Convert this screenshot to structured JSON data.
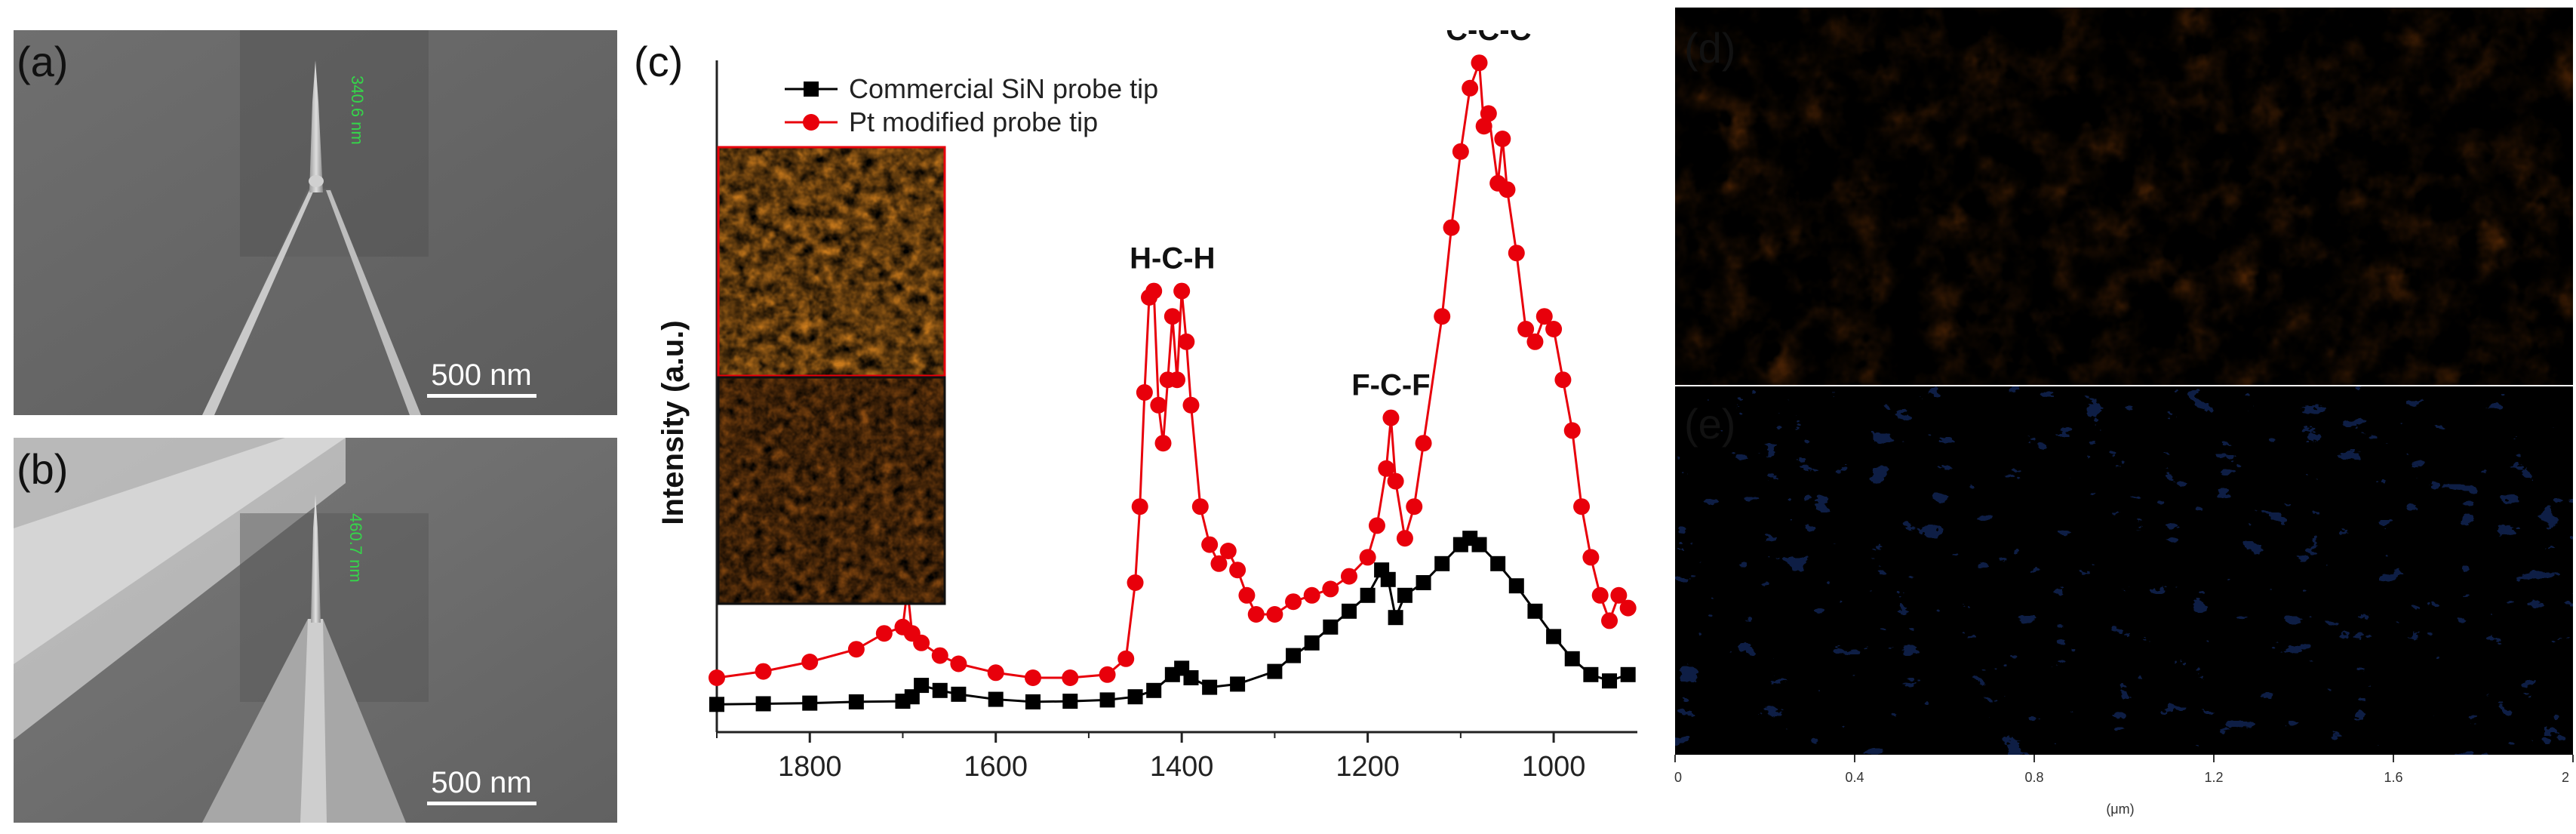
{
  "panels": {
    "a": {
      "label": "(a)",
      "scale_bar": "500 nm",
      "measurement": "340.6 nm"
    },
    "b": {
      "label": "(b)",
      "scale_bar": "500 nm",
      "measurement": "460.7 nm"
    },
    "c": {
      "label": "(c)"
    },
    "d": {
      "label": "(d)"
    },
    "e": {
      "label": "(e)",
      "ticks": [
        "0",
        "0.4",
        "0.8",
        "1.2",
        "1.6",
        "2"
      ],
      "unit": "(μm)"
    }
  },
  "chart_data": {
    "type": "line",
    "title": "",
    "xlabel": "",
    "ylabel": "Intensity (a.u.)",
    "xlim": [
      1900,
      910
    ],
    "ylim": [
      0,
      10
    ],
    "x_ticks": [
      1800,
      1600,
      1400,
      1200,
      1000
    ],
    "legend_position": "top-left",
    "grid": false,
    "colors": {
      "commercial": "#000000",
      "pt": "#e8000b"
    },
    "series": [
      {
        "name": "Commercial SiN probe tip",
        "marker": "square",
        "x": [
          1900,
          1850,
          1800,
          1750,
          1700,
          1690,
          1680,
          1660,
          1640,
          1600,
          1560,
          1520,
          1480,
          1450,
          1430,
          1410,
          1400,
          1390,
          1370,
          1340,
          1300,
          1280,
          1260,
          1240,
          1220,
          1200,
          1185,
          1178,
          1170,
          1160,
          1140,
          1120,
          1100,
          1090,
          1080,
          1060,
          1040,
          1020,
          1000,
          980,
          960,
          940,
          920
        ],
        "y": [
          0.08,
          0.09,
          0.1,
          0.12,
          0.13,
          0.2,
          0.38,
          0.3,
          0.24,
          0.16,
          0.12,
          0.13,
          0.15,
          0.2,
          0.3,
          0.55,
          0.65,
          0.5,
          0.35,
          0.4,
          0.6,
          0.85,
          1.05,
          1.3,
          1.55,
          1.8,
          2.2,
          2.05,
          1.45,
          1.8,
          2.0,
          2.3,
          2.6,
          2.7,
          2.6,
          2.3,
          1.95,
          1.55,
          1.15,
          0.8,
          0.55,
          0.45,
          0.55
        ]
      },
      {
        "name": "Pt modified probe tip",
        "marker": "circle",
        "x": [
          1900,
          1850,
          1800,
          1750,
          1720,
          1700,
          1695,
          1690,
          1680,
          1660,
          1640,
          1600,
          1560,
          1520,
          1480,
          1460,
          1450,
          1445,
          1440,
          1435,
          1430,
          1425,
          1420,
          1415,
          1410,
          1405,
          1400,
          1395,
          1390,
          1380,
          1370,
          1360,
          1350,
          1340,
          1330,
          1320,
          1300,
          1280,
          1260,
          1240,
          1220,
          1200,
          1190,
          1180,
          1175,
          1170,
          1160,
          1150,
          1140,
          1120,
          1110,
          1100,
          1090,
          1080,
          1075,
          1070,
          1060,
          1055,
          1050,
          1040,
          1030,
          1020,
          1010,
          1000,
          990,
          980,
          970,
          960,
          950,
          940,
          930,
          920
        ],
        "y": [
          0.5,
          0.6,
          0.75,
          0.95,
          1.2,
          1.3,
          1.9,
          1.2,
          1.05,
          0.85,
          0.72,
          0.58,
          0.5,
          0.5,
          0.55,
          0.8,
          2.0,
          3.2,
          5.0,
          6.5,
          6.6,
          4.8,
          4.2,
          5.2,
          6.2,
          5.2,
          6.6,
          5.8,
          4.8,
          3.2,
          2.6,
          2.3,
          2.5,
          2.2,
          1.8,
          1.5,
          1.5,
          1.7,
          1.8,
          1.9,
          2.1,
          2.4,
          2.9,
          3.8,
          4.6,
          3.6,
          2.7,
          3.2,
          4.2,
          6.2,
          7.6,
          8.8,
          9.8,
          10.2,
          9.2,
          9.4,
          8.3,
          9.0,
          8.2,
          7.2,
          6.0,
          5.8,
          6.2,
          6.0,
          5.2,
          4.4,
          3.2,
          2.4,
          1.8,
          1.4,
          1.8,
          1.6
        ]
      }
    ],
    "annotations": [
      {
        "text": "H-C-H",
        "x": 1410
      },
      {
        "text": "F-C-F",
        "x": 1175
      },
      {
        "text": "C-C-C",
        "x": 1070
      }
    ]
  }
}
